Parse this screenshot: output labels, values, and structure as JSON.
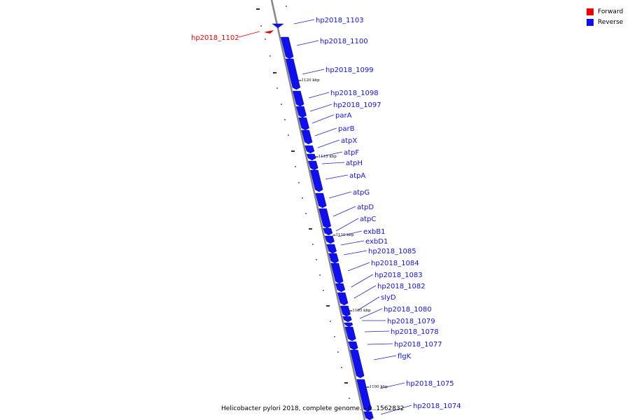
{
  "colors": {
    "forward": "#ee0000",
    "reverse": "#1010ee",
    "backbone": "#888888",
    "label_line_reverse": "#2222cc",
    "label_line_forward": "#dd0000"
  },
  "legend": [
    {
      "label": "Forward",
      "color": "#ee0000"
    },
    {
      "label": "Reverse",
      "color": "#1010ee"
    }
  ],
  "caption": "Helicobacter pylori 2018, complete genome. - 0..1562832",
  "scale": {
    "unit": "kbp",
    "ticks": [
      {
        "kbp": 1120,
        "label": "1120 kbp"
      },
      {
        "kbp": 1115,
        "label": "1115 kbp"
      },
      {
        "kbp": 1110,
        "label": "1110 kbp"
      },
      {
        "kbp": 1105,
        "label": "1105 kbp"
      },
      {
        "kbp": 1100,
        "label": "1100 kbp"
      }
    ]
  },
  "genes": [
    {
      "name": "hp2018_1103",
      "strand": "reverse"
    },
    {
      "name": "hp2018_1102",
      "strand": "forward"
    },
    {
      "name": "hp2018_1100",
      "strand": "reverse"
    },
    {
      "name": "hp2018_1099",
      "strand": "reverse"
    },
    {
      "name": "hp2018_1098",
      "strand": "reverse"
    },
    {
      "name": "hp2018_1097",
      "strand": "reverse"
    },
    {
      "name": "parA",
      "strand": "reverse"
    },
    {
      "name": "parB",
      "strand": "reverse"
    },
    {
      "name": "atpX",
      "strand": "reverse"
    },
    {
      "name": "atpF",
      "strand": "reverse"
    },
    {
      "name": "atpH",
      "strand": "reverse"
    },
    {
      "name": "atpA",
      "strand": "reverse"
    },
    {
      "name": "atpG",
      "strand": "reverse"
    },
    {
      "name": "atpD",
      "strand": "reverse"
    },
    {
      "name": "atpC",
      "strand": "reverse"
    },
    {
      "name": "exbB1",
      "strand": "reverse"
    },
    {
      "name": "exbD1",
      "strand": "reverse"
    },
    {
      "name": "hp2018_1085",
      "strand": "reverse"
    },
    {
      "name": "hp2018_1084",
      "strand": "reverse"
    },
    {
      "name": "hp2018_1083",
      "strand": "reverse"
    },
    {
      "name": "hp2018_1082",
      "strand": "reverse"
    },
    {
      "name": "slyD",
      "strand": "reverse"
    },
    {
      "name": "hp2018_1080",
      "strand": "reverse"
    },
    {
      "name": "hp2018_1079",
      "strand": "reverse"
    },
    {
      "name": "hp2018_1078",
      "strand": "reverse"
    },
    {
      "name": "hp2018_1077",
      "strand": "reverse"
    },
    {
      "name": "flgK",
      "strand": "reverse"
    },
    {
      "name": "hp2018_1075",
      "strand": "reverse"
    },
    {
      "name": "hp2018_1074",
      "strand": "reverse"
    }
  ]
}
